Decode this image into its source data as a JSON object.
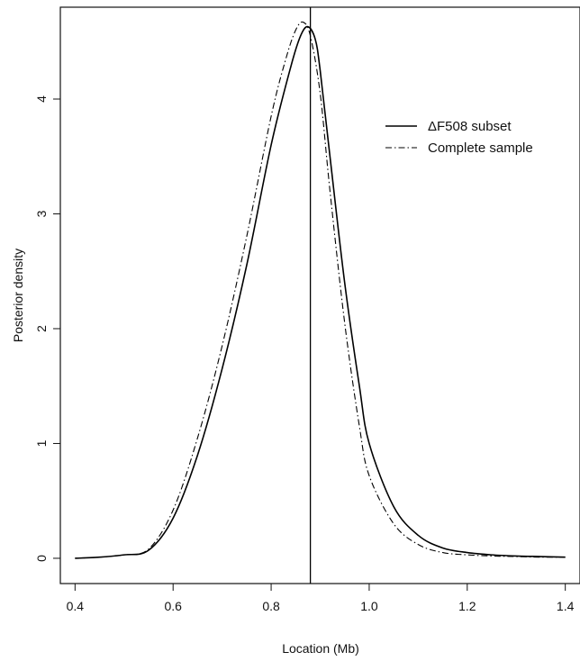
{
  "chart_data": {
    "type": "line",
    "title": "",
    "xlabel": "Location (Mb)",
    "ylabel": "Posterior density",
    "xlim": [
      0.37,
      1.43
    ],
    "ylim": [
      -0.22,
      4.8
    ],
    "xticks": [
      0.4,
      0.6,
      0.8,
      1.0,
      1.2,
      1.4
    ],
    "xtick_labels": [
      "0.4",
      "0.6",
      "0.8",
      "1.0",
      "1.2",
      "1.4"
    ],
    "yticks": [
      0,
      1,
      2,
      3,
      4
    ],
    "ytick_labels": [
      "0",
      "1",
      "2",
      "3",
      "4"
    ],
    "grid": false,
    "legend_position": "top-right",
    "vline": {
      "x": 0.88,
      "color": "#000000"
    },
    "series": [
      {
        "name": "ΔF508 subset",
        "style": "solid",
        "color": "#000000",
        "x": [
          0.4,
          0.45,
          0.5,
          0.55,
          0.6,
          0.65,
          0.7,
          0.75,
          0.8,
          0.84,
          0.86,
          0.875,
          0.89,
          0.9,
          0.92,
          0.95,
          0.98,
          1.0,
          1.05,
          1.1,
          1.15,
          1.2,
          1.25,
          1.3,
          1.35,
          1.4
        ],
        "y": [
          0.0,
          0.01,
          0.03,
          0.07,
          0.35,
          0.9,
          1.65,
          2.55,
          3.6,
          4.28,
          4.55,
          4.63,
          4.52,
          4.25,
          3.5,
          2.4,
          1.5,
          1.0,
          0.45,
          0.2,
          0.09,
          0.05,
          0.03,
          0.02,
          0.015,
          0.01
        ]
      },
      {
        "name": "Complete sample",
        "style": "dash-dot",
        "color": "#000000",
        "x": [
          0.4,
          0.45,
          0.5,
          0.55,
          0.6,
          0.65,
          0.7,
          0.75,
          0.8,
          0.83,
          0.85,
          0.865,
          0.88,
          0.9,
          0.92,
          0.95,
          0.98,
          1.0,
          1.05,
          1.1,
          1.15,
          1.2,
          1.25,
          1.3,
          1.35,
          1.4
        ],
        "y": [
          0.0,
          0.01,
          0.03,
          0.08,
          0.42,
          1.05,
          1.85,
          2.8,
          3.85,
          4.35,
          4.6,
          4.67,
          4.55,
          4.05,
          3.2,
          2.05,
          1.15,
          0.72,
          0.3,
          0.12,
          0.05,
          0.03,
          0.02,
          0.015,
          0.01,
          0.01
        ]
      }
    ]
  }
}
